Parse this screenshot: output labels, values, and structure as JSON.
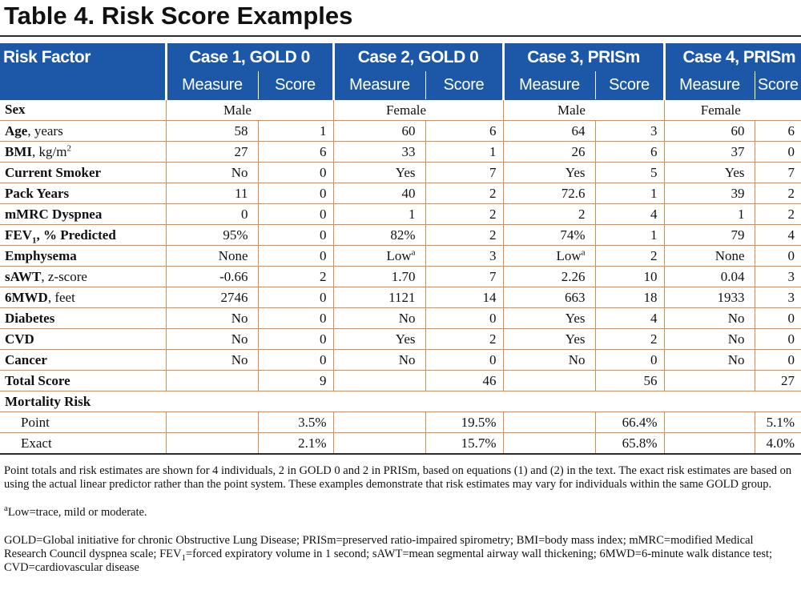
{
  "title": "Table 4.  Risk Score Examples",
  "header": {
    "risk_factor": "Risk Factor",
    "cases": [
      "Case 1, GOLD 0",
      "Case 2, GOLD 0",
      "Case 3, PRISm",
      "Case 4, PRISm"
    ],
    "measure": "Measure",
    "score": "Score"
  },
  "sex": {
    "label": "Sex",
    "values": [
      "Male",
      "Female",
      "Male",
      "Female"
    ]
  },
  "rows": [
    {
      "bold": "Age",
      "rest": ", years",
      "m": [
        "58",
        "60",
        "64",
        "60"
      ],
      "s": [
        "1",
        "6",
        "3",
        "6"
      ]
    },
    {
      "bold": "BMI",
      "rest": ", kg/m",
      "sup": "2",
      "m": [
        "27",
        "33",
        "26",
        "37"
      ],
      "s": [
        "6",
        "1",
        "6",
        "0"
      ]
    },
    {
      "bold": "Current Smoker",
      "rest": "",
      "m": [
        "No",
        "Yes",
        "Yes",
        "Yes"
      ],
      "s": [
        "0",
        "7",
        "5",
        "7"
      ]
    },
    {
      "bold": "Pack Years",
      "rest": "",
      "m": [
        "11",
        "40",
        "72.6",
        "39"
      ],
      "s": [
        "0",
        "2",
        "1",
        "2"
      ]
    },
    {
      "bold": "mMRC Dyspnea",
      "rest": "",
      "m": [
        "0",
        "1",
        "2",
        "1"
      ],
      "s": [
        "0",
        "2",
        "4",
        "2"
      ]
    },
    {
      "bold": "FEV",
      "sub": "1",
      "bold2": ", % Predicted",
      "m": [
        "95%",
        "82%",
        "74%",
        "79"
      ],
      "s": [
        "0",
        "2",
        "1",
        "4"
      ]
    },
    {
      "bold": "Emphysema",
      "rest": "",
      "m": [
        "None",
        "Low",
        "Low",
        "None"
      ],
      "msup": [
        "",
        "a",
        "a",
        ""
      ],
      "s": [
        "0",
        "3",
        "2",
        "0"
      ]
    },
    {
      "bold": "sAWT",
      "rest": ", z-score",
      "m": [
        "-0.66",
        "1.70",
        "2.26",
        "0.04"
      ],
      "s": [
        "2",
        "7",
        "10",
        "3"
      ]
    },
    {
      "bold": "6MWD",
      "rest": ", feet",
      "m": [
        "2746",
        "1121",
        "663",
        "1933"
      ],
      "s": [
        "0",
        "14",
        "18",
        "3"
      ]
    },
    {
      "bold": "Diabetes",
      "rest": "",
      "m": [
        "No",
        "No",
        "Yes",
        "No"
      ],
      "s": [
        "0",
        "0",
        "4",
        "0"
      ]
    },
    {
      "bold": "CVD",
      "rest": "",
      "m": [
        "No",
        "Yes",
        "Yes",
        "No"
      ],
      "s": [
        "0",
        "2",
        "2",
        "0"
      ]
    },
    {
      "bold": "Cancer",
      "rest": "",
      "m": [
        "No",
        "No",
        "No",
        "No"
      ],
      "s": [
        "0",
        "0",
        "0",
        "0"
      ]
    }
  ],
  "total": {
    "label": "Total Score",
    "s": [
      "9",
      "46",
      "56",
      "27"
    ]
  },
  "mortality": {
    "label": "Mortality Risk",
    "point_label": "Point",
    "point": [
      "3.5%",
      "19.5%",
      "66.4%",
      "5.1%"
    ],
    "exact_label": "Exact",
    "exact": [
      "2.1%",
      "15.7%",
      "65.8%",
      "4.0%"
    ]
  },
  "notes": {
    "n1": "Point totals and risk estimates are shown for 4 individuals, 2 in GOLD 0 and 2 in PRISm, based on equations (1) and (2) in the text. The exact risk estimates are based on using the actual linear predictor rather than the point system.  These examples demonstrate that risk estimates may vary for individuals within the same GOLD group.",
    "n2_sup": "a",
    "n2": "Low=trace, mild or moderate.",
    "n3a": "GOLD=Global initiative for chronic Obstructive Lung Disease; PRISm=preserved ratio-impaired spirometry; BMI=body mass index; mMRC=modified Medical Research Council dyspnea scale; FEV",
    "n3sub1": "1",
    "n3b": "=forced expiratory volume in 1 second; sAWT=mean segmental airway wall thickening; 6MWD=6-minute walk distance test; CVD=cardiovascular disease"
  }
}
